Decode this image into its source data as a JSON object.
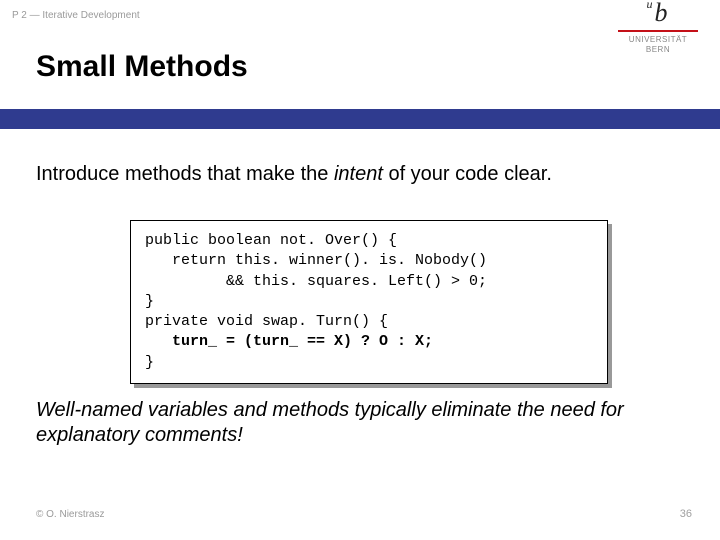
{
  "course_label": "P 2 — Iterative Development",
  "title": "Small Methods",
  "intro_pre": "Introduce methods that make the ",
  "intro_em": "intent",
  "intro_post": " of your code clear.",
  "code_lines": [
    {
      "indent": 0,
      "text": "public boolean not. Over() {",
      "bold": false
    },
    {
      "indent": 1,
      "text": "return this. winner(). is. Nobody()",
      "bold": false
    },
    {
      "indent": 3,
      "text": "&& this. squares. Left() > 0;",
      "bold": false
    },
    {
      "indent": 0,
      "text": "}",
      "bold": false
    },
    {
      "indent": 0,
      "text": "private void swap. Turn() {",
      "bold": false
    },
    {
      "indent": 1,
      "text": "turn_ = (turn_ == X) ? O : X;",
      "bold": true
    },
    {
      "indent": 0,
      "text": "}",
      "bold": false
    }
  ],
  "footer_text": "Well-named variables and methods typically eliminate the need for explanatory comments!",
  "copyright": "© O. Nierstrasz",
  "page_number": "36",
  "logo": {
    "letter": "b",
    "sup": "u",
    "line1": "UNIVERSITÄT",
    "line2": "BERN"
  },
  "colors": {
    "blue_bar": "#2f3b8f",
    "logo_red": "#c41018",
    "muted": "#9a9a9a",
    "code_shadow": "#999999"
  }
}
